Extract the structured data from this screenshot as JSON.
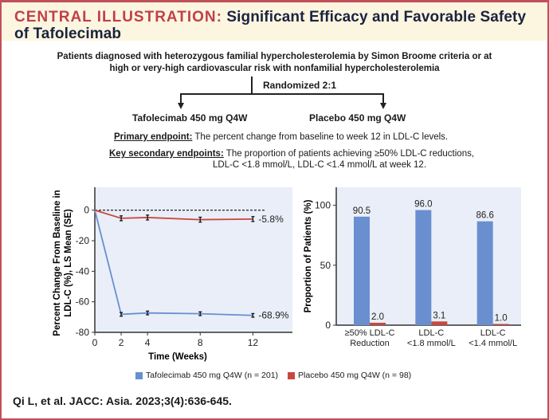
{
  "header": {
    "kicker": "CENTRAL ILLUSTRATION:",
    "title_line1": "Significant Efficacy and Favorable Safety",
    "title_line2": "of Tafolecimab"
  },
  "design": {
    "population_line1": "Patients diagnosed with heterozygous familial hypercholesterolemia by Simon Broome criteria or at",
    "population_line2": "high or very-high cardiovascular risk with nonfamilial hypercholesterolemia",
    "randomization": "Randomized 2:1",
    "arm_treatment": "Tafolecimab 450 mg Q4W",
    "arm_placebo": "Placebo 450 mg Q4W"
  },
  "endpoints": {
    "primary_label": "Primary endpoint:",
    "primary_text": "The percent change from baseline to week 12 in LDL-C levels.",
    "secondary_label": "Key secondary endpoints:",
    "secondary_text_line1": "The proportion of patients achieving ≥50% LDL-C reductions,",
    "secondary_text_line2": "LDL-C <1.8 mmol/L, LDL-C <1.4 mmol/L at week 12."
  },
  "colors": {
    "treatment": "#6a8fd0",
    "placebo": "#c9483e",
    "plot_bg": "#e9eef8"
  },
  "chart_data": [
    {
      "type": "line",
      "title": "",
      "xlabel": "Time (Weeks)",
      "ylabel_line1": "Percent Change From Baseline in",
      "ylabel_line2": "LDL-C (%), LS Mean (SE)",
      "x": [
        0,
        2,
        4,
        8,
        12
      ],
      "xticks": [
        "0",
        "2",
        "4",
        "8",
        "12"
      ],
      "yticks": [
        "0",
        "-20",
        "-40",
        "-60",
        "-80"
      ],
      "ytick_values": [
        0,
        -20,
        -40,
        -60,
        -80
      ],
      "xlim": [
        0,
        15
      ],
      "ylim": [
        -80,
        15
      ],
      "reference_line": 0,
      "series": [
        {
          "name": "Tafolecimab 450 mg Q4W",
          "values": [
            0,
            -68.2,
            -67.3,
            -67.8,
            -68.9
          ],
          "se": [
            0,
            1.2,
            1.2,
            1.2,
            1.2
          ],
          "end_label": "-68.9%"
        },
        {
          "name": "Placebo 450 mg Q4W",
          "values": [
            0,
            -5.3,
            -4.8,
            -6.2,
            -5.8
          ],
          "se": [
            0,
            1.6,
            1.6,
            1.6,
            1.6
          ],
          "end_label": "-5.8%"
        }
      ]
    },
    {
      "type": "bar",
      "title": "",
      "xlabel": "",
      "ylabel": "Proportion of Patients (%)",
      "categories": [
        [
          "≥50% LDL-C",
          "Reduction"
        ],
        [
          "LDL-C",
          "<1.8 mmol/L"
        ],
        [
          "LDL-C",
          "<1.4 mmol/L"
        ]
      ],
      "yticks": [
        "0",
        "50",
        "100"
      ],
      "ytick_values": [
        0,
        50,
        100
      ],
      "ylim": [
        0,
        115
      ],
      "series": [
        {
          "name": "Tafolecimab 450 mg Q4W",
          "values": [
            90.5,
            96.0,
            86.6
          ],
          "labels": [
            "90.5",
            "96.0",
            "86.6"
          ]
        },
        {
          "name": "Placebo 450 mg Q4W",
          "values": [
            2.0,
            3.1,
            1.0
          ],
          "labels": [
            "2.0",
            "3.1",
            "1.0"
          ]
        }
      ]
    }
  ],
  "legend": {
    "treatment": "Tafolecimab 450 mg Q4W (n = 201)",
    "placebo": "Placebo 450 mg Q4W (n = 98)"
  },
  "citation": "Qi L, et al. JACC: Asia. 2023;3(4):636-645."
}
